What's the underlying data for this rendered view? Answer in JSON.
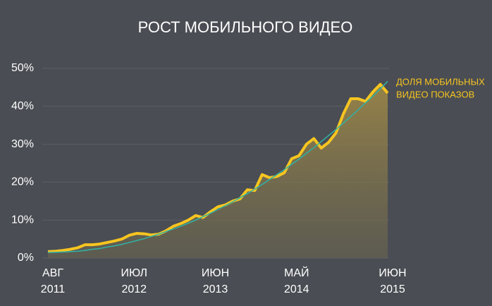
{
  "chart_data": {
    "type": "line",
    "title": "РОСТ МОБИЛЬНОГО ВИДЕО",
    "annotation": [
      "ДОЛЯ МОБИЛЬНЫХ",
      "ВИДЕО ПОКАЗОВ"
    ],
    "categories": [
      [
        "АВГ",
        "2011"
      ],
      null,
      null,
      null,
      null,
      null,
      null,
      null,
      null,
      null,
      null,
      [
        "ИЮЛ",
        "2012"
      ],
      null,
      null,
      null,
      null,
      null,
      null,
      null,
      null,
      null,
      null,
      [
        "ИЮН",
        "2013"
      ],
      null,
      null,
      null,
      null,
      null,
      null,
      null,
      null,
      null,
      null,
      [
        "МАЙ",
        "2014"
      ],
      null,
      null,
      null,
      null,
      null,
      null,
      null,
      null,
      null,
      null,
      null,
      null,
      [
        "ИЮН",
        "2015"
      ]
    ],
    "series": [
      {
        "name": "ДОЛЯ МОБИЛЬНЫХ ВИДЕО ПОКАЗОВ",
        "color": "#f7c520",
        "values": [
          1.7,
          1.8,
          2.0,
          2.3,
          2.7,
          3.5,
          3.5,
          3.7,
          4.1,
          4.5,
          5.0,
          6.0,
          6.5,
          6.4,
          6.1,
          6.3,
          7.2,
          8.4,
          9.1,
          10.0,
          11.2,
          10.7,
          12.2,
          13.5,
          14.0,
          15.0,
          15.6,
          18.0,
          17.8,
          22.0,
          21.2,
          21.5,
          22.5,
          26.2,
          27.0,
          30.0,
          31.5,
          29.0,
          30.5,
          33.0,
          38.0,
          42.0,
          42.0,
          41.3,
          43.8,
          45.8,
          43.5
        ]
      },
      {
        "color": "#2fb3a6",
        "values": [
          1.5,
          1.5,
          1.6,
          1.7,
          1.8,
          2.0,
          2.3,
          2.5,
          2.9,
          3.2,
          3.6,
          4.1,
          4.6,
          5.1,
          5.7,
          6.3,
          7.0,
          7.7,
          8.4,
          9.2,
          10.0,
          10.9,
          11.8,
          12.8,
          13.8,
          14.8,
          15.9,
          17.0,
          18.2,
          19.4,
          20.7,
          22.0,
          23.3,
          24.7,
          26.1,
          27.6,
          29.1,
          30.7,
          32.3,
          33.9,
          35.6,
          37.3,
          39.1,
          40.9,
          42.7,
          44.6,
          46.6
        ]
      }
    ],
    "ylim": [
      0,
      50
    ],
    "yticks": [
      {
        "value": 0,
        "label": "0%"
      },
      {
        "value": 10,
        "label": "10%"
      },
      {
        "value": 20,
        "label": "20%"
      },
      {
        "value": 30,
        "label": "30%"
      },
      {
        "value": 40,
        "label": "40%"
      },
      {
        "value": 50,
        "label": "50%"
      }
    ],
    "grid": true
  }
}
